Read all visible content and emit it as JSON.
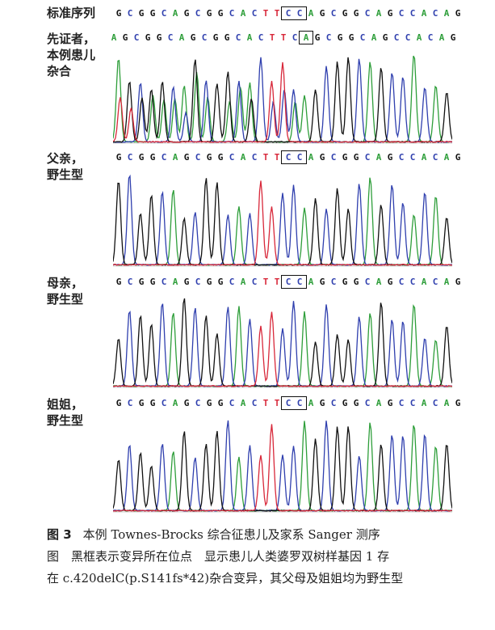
{
  "figure": {
    "number": "图 3",
    "caption_line1": "本例 Townes-Brocks 综合征患儿及家系 Sanger 测序",
    "caption_line2": "图　黑框表示变异所在位点　显示患儿人类婆罗双树样基因 1 存",
    "caption_line3": "在 c.420delC(p.S141fs*42)杂合变异，其父母及姐姐均为野生型"
  },
  "panels": [
    {
      "id": "reference",
      "label_lines": [
        "标准序列"
      ],
      "sequence": "GCGGCAGCGGCACTTCCAGCGGCAGCCACAG",
      "boxed_start": 15,
      "boxed_len": 2
    },
    {
      "id": "proband",
      "label_lines": [
        "先证者，",
        "本例患儿",
        "杂合"
      ],
      "sequence": "AGCGGCAGCGGCACTTCAGCGGCAGCCACAG",
      "boxed_start": 17,
      "boxed_len": 1
    },
    {
      "id": "father",
      "label_lines": [
        "父亲，",
        "野生型"
      ],
      "sequence": "GCGGCAGCGGCACTTCCAGCGGCAGCCACAG",
      "boxed_start": 15,
      "boxed_len": 2
    },
    {
      "id": "mother",
      "label_lines": [
        "母亲，",
        "野生型"
      ],
      "sequence": "GCGGCAGCGGCACTTCCAGCGGCAGCCACAG",
      "boxed_start": 15,
      "boxed_len": 2
    },
    {
      "id": "sister",
      "label_lines": [
        "姐姐，",
        "野生型"
      ],
      "sequence": "GCGGCAGCGGCACTTCCAGCGGCAGCCACAG",
      "boxed_start": 15,
      "boxed_len": 2
    }
  ],
  "base_colors": {
    "A": "#2e9e3a",
    "C": "#2f3fae",
    "G": "#111111",
    "T": "#d8283a"
  }
}
